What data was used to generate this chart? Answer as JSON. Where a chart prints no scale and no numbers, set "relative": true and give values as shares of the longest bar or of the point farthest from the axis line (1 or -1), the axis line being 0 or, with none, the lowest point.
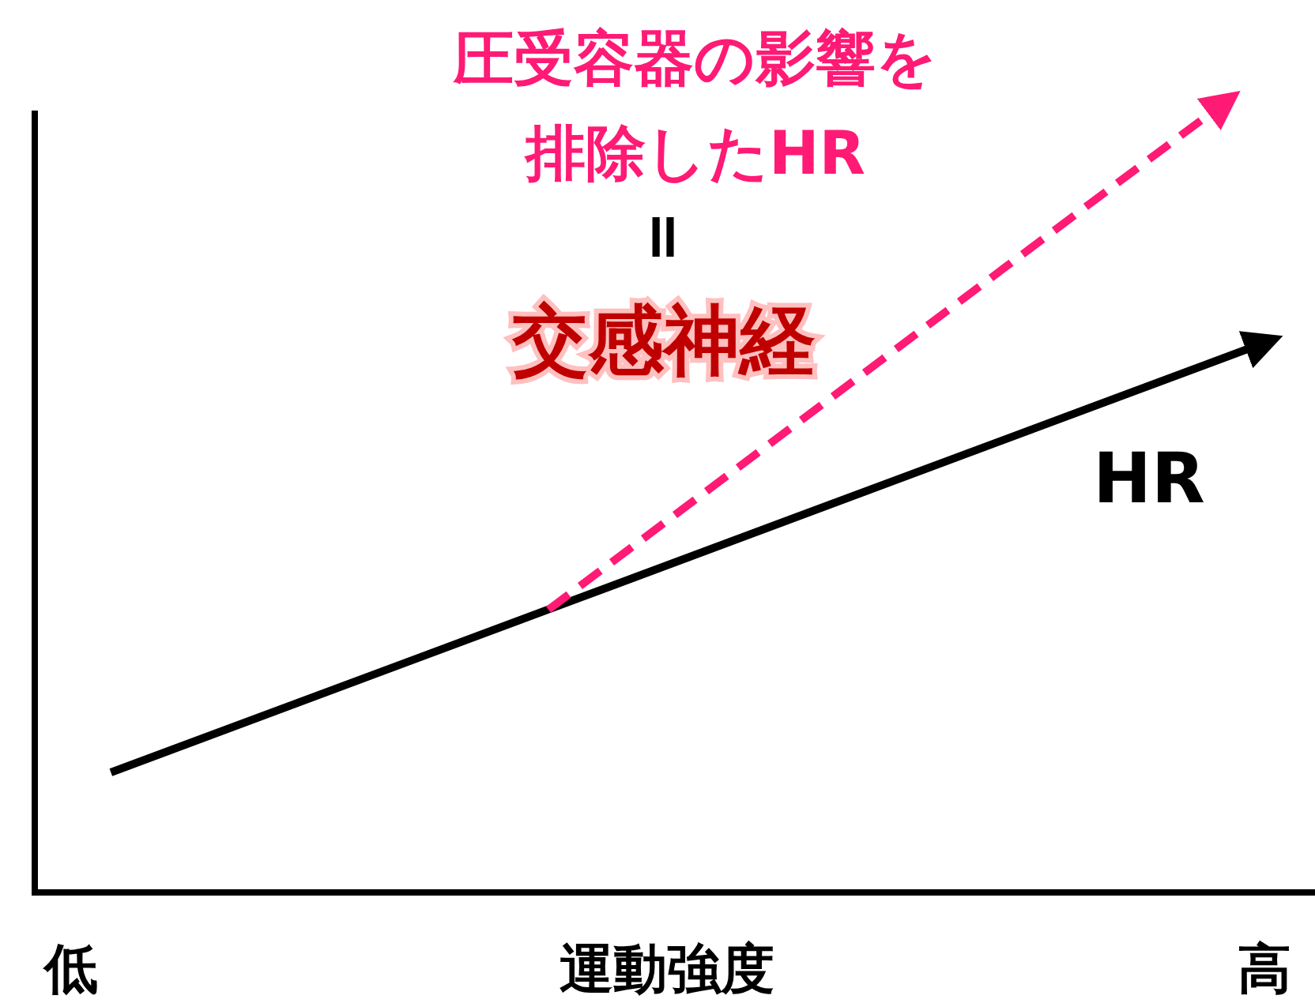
{
  "chart_data": {
    "type": "line",
    "relative": true,
    "xlabel": "運動強度",
    "categories": [
      "低",
      null,
      null,
      null,
      null,
      null,
      null,
      null,
      null,
      null,
      null,
      null,
      null,
      null,
      null,
      null,
      null,
      null,
      null,
      null,
      null,
      null,
      null,
      null,
      null,
      null,
      null,
      null,
      null,
      null,
      "高"
    ],
    "series": [
      {
        "name": "HR",
        "color": "#000000",
        "line_style": "solid",
        "values": [
          null,
          0.152,
          null,
          null,
          null,
          null,
          null,
          null,
          null,
          null,
          null,
          null,
          null,
          null,
          null,
          null,
          null,
          null,
          null,
          null,
          null,
          null,
          null,
          null,
          null,
          null,
          null,
          null,
          null,
          null,
          0.696
        ]
      },
      {
        "name": "圧受容器の影響を排除したHR",
        "color": "#ff1a75",
        "line_style": "dashed",
        "values": [
          null,
          null,
          null,
          null,
          null,
          null,
          null,
          null,
          null,
          null,
          null,
          null,
          0.358,
          null,
          null,
          null,
          null,
          null,
          null,
          null,
          null,
          null,
          null,
          null,
          null,
          null,
          null,
          null,
          null,
          1,
          null
        ]
      }
    ],
    "annotations": [
      "=",
      "交感神経"
    ]
  }
}
